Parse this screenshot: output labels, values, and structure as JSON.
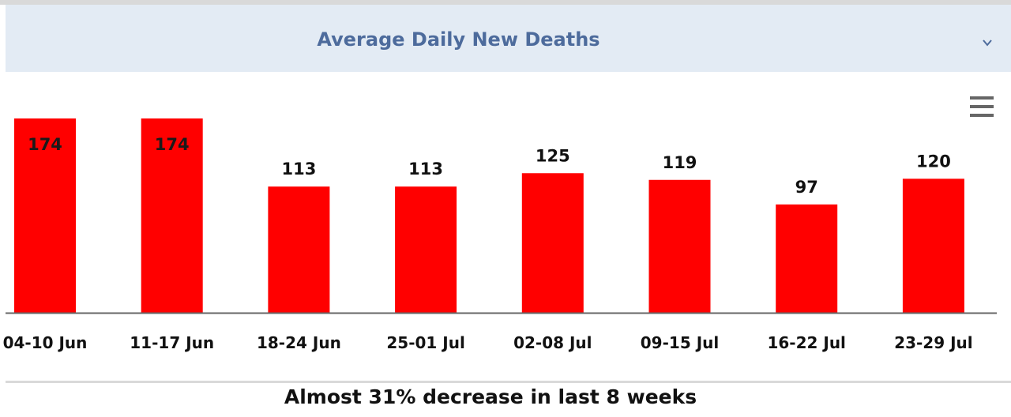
{
  "header": {
    "title": "Average Daily New Deaths",
    "chevron_icon": "chevron-down-icon",
    "menu_icon": "hamburger-menu-icon"
  },
  "colors": {
    "bar": "#ff0000",
    "header_bg": "#e3ebf4",
    "title": "#4d6b9c",
    "axis": "#666666"
  },
  "chart_data": {
    "type": "bar",
    "categories": [
      "04-10 Jun",
      "11-17 Jun",
      "18-24 Jun",
      "25-01 Jul",
      "02-08 Jul",
      "09-15 Jul",
      "16-22 Jul",
      "23-29 Jul"
    ],
    "values": [
      174,
      174,
      113,
      113,
      125,
      119,
      97,
      120
    ],
    "data_labels": [
      "174",
      "174",
      "113",
      "113",
      "125",
      "119",
      "97",
      "120"
    ],
    "ylim": [
      0,
      174
    ],
    "grid": false,
    "legend": "none"
  },
  "footer": {
    "note": "Almost 31% decrease in last 8 weeks"
  }
}
